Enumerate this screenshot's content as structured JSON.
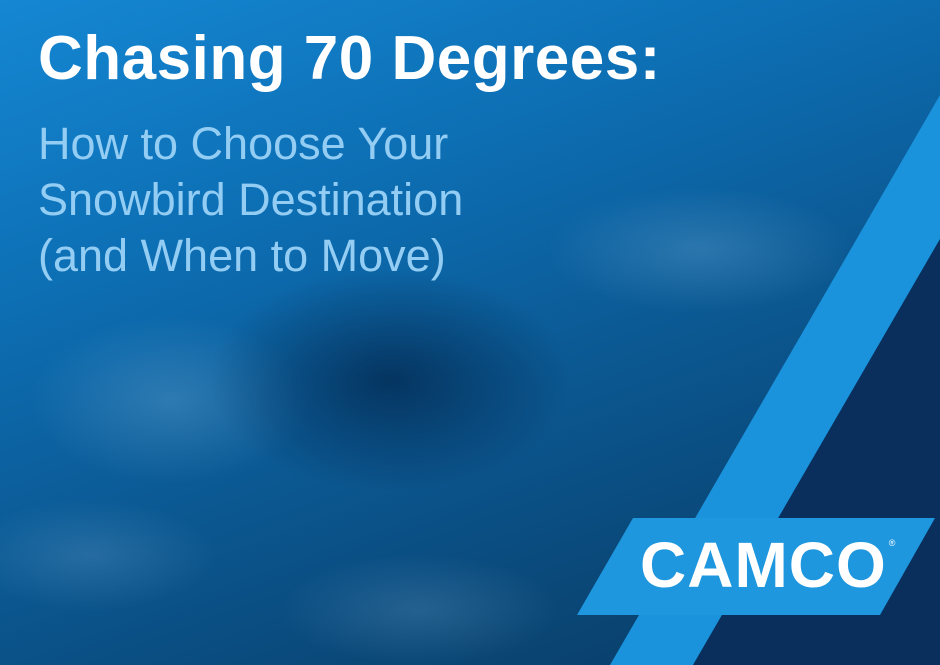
{
  "headline": {
    "title": "Chasing 70 Degrees:",
    "subtitle_lines": [
      "How to Choose Your",
      "Snowbird Destination",
      "(and When to Move)"
    ]
  },
  "brand": {
    "logo_text": "CAMCO",
    "registered_mark": "®"
  },
  "colors": {
    "title": "#ffffff",
    "subtitle": "#93cdf3",
    "stripe_light_blue": "#1a93dc",
    "navy": "#0a2f5c",
    "logo_bg": "#1e97de"
  },
  "background": "aerial photo of RV park with blue tint"
}
